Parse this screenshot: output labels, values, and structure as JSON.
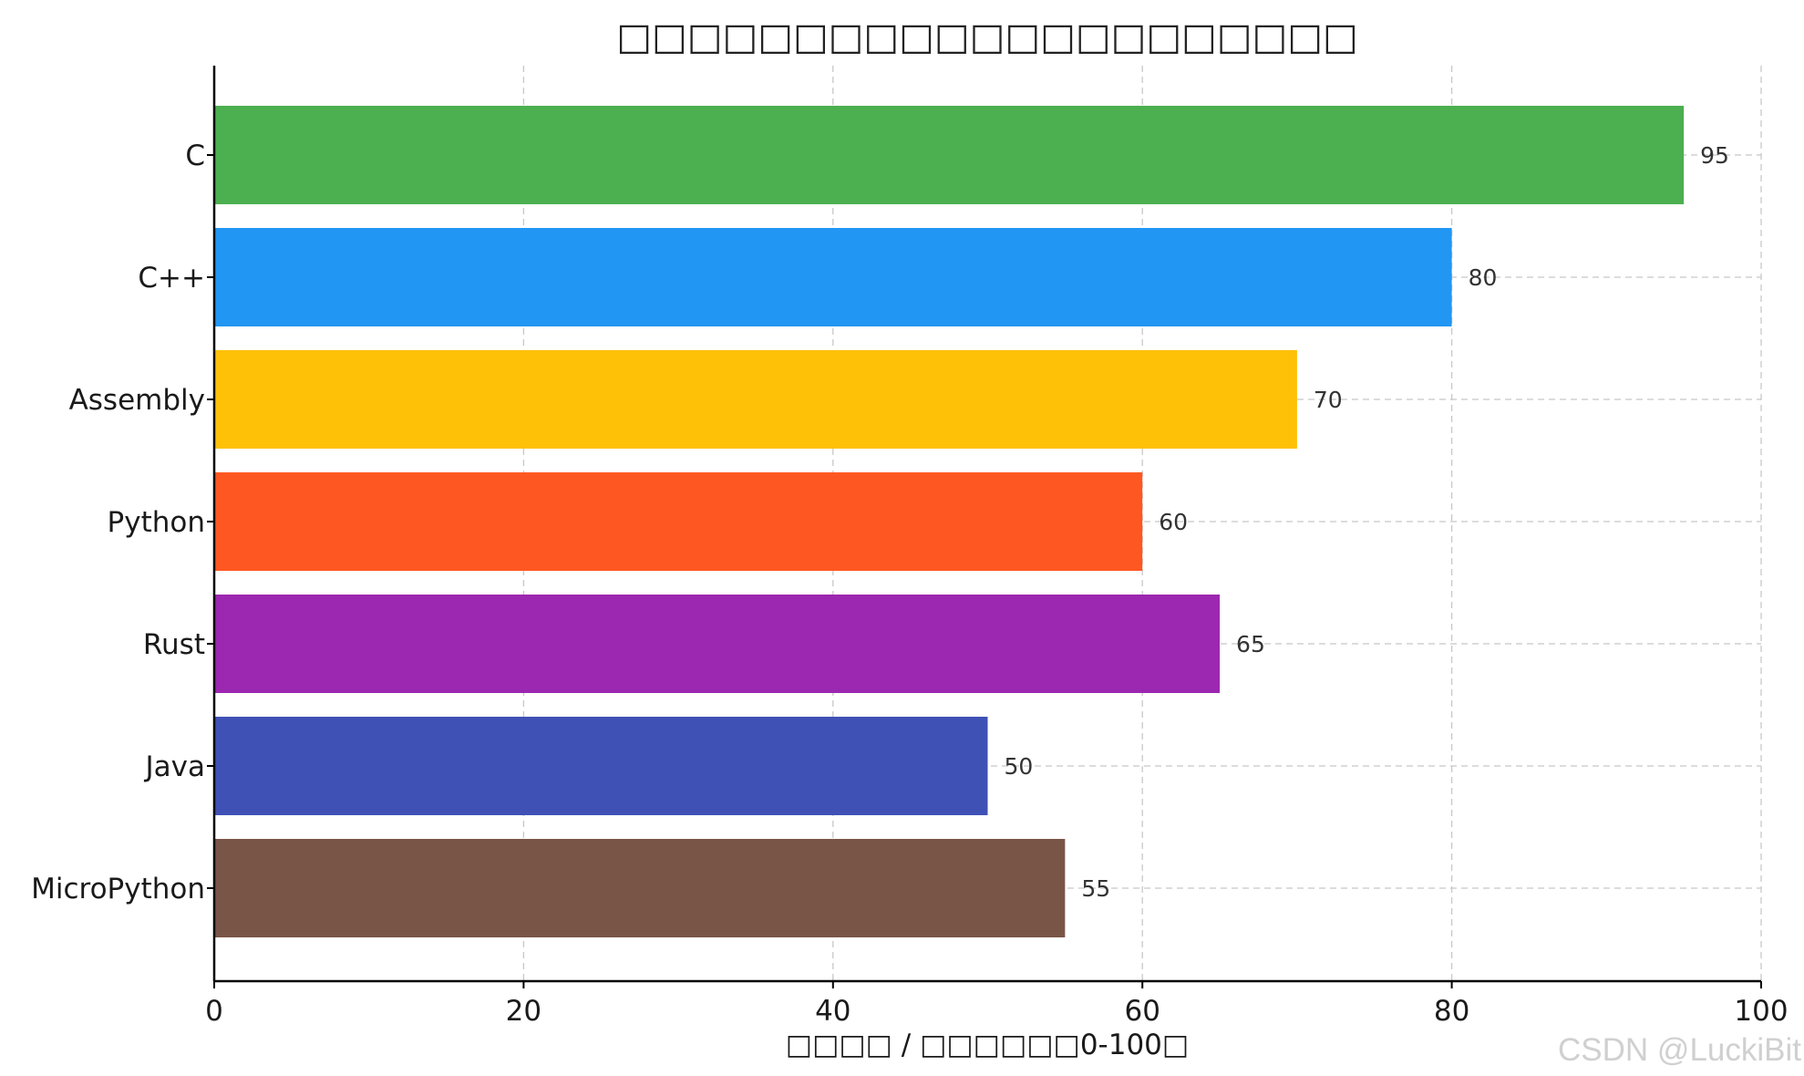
{
  "chart_data": {
    "type": "bar",
    "orientation": "horizontal",
    "title": "□□□□□□□□□□□□□□□□□□□□□",
    "xlabel": "□□□□ / □□□□□□0-100□",
    "ylabel": "",
    "categories": [
      "C",
      "C++",
      "Assembly",
      "Python",
      "Rust",
      "Java",
      "MicroPython"
    ],
    "values": [
      95,
      80,
      70,
      60,
      65,
      50,
      55
    ],
    "colors": [
      "#4caf50",
      "#2196f3",
      "#ffc107",
      "#ff5722",
      "#9c27b0",
      "#3f51b5",
      "#795548"
    ],
    "xlim": [
      0,
      100
    ],
    "xticks": [
      0,
      20,
      40,
      60,
      80,
      100
    ],
    "grid": true,
    "data_labels": true
  },
  "watermark": "CSDN @LuckiBit"
}
